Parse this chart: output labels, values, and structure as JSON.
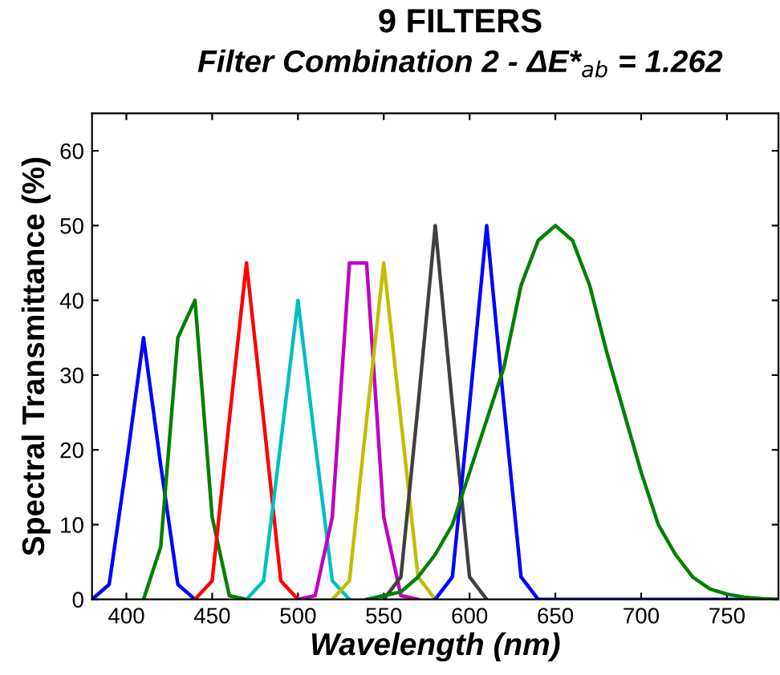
{
  "chart_data": {
    "type": "line",
    "title": "9 FILTERS",
    "subtitle": "Filter Combination 2 - ΔE*$_{ab}$ = 1.262",
    "xlabel": "Wavelength (nm)",
    "ylabel": "Spectral Transmittance (%)",
    "series": [
      {
        "color": "#0000ff",
        "x": [
          380,
          390,
          400,
          410,
          420,
          430,
          440
        ],
        "values": [
          0,
          2,
          18,
          35,
          18,
          2,
          0
        ]
      },
      {
        "color": "#008000",
        "x": [
          410,
          420,
          430,
          440,
          450,
          460,
          470
        ],
        "values": [
          0,
          7,
          35,
          40,
          11,
          0.5,
          0
        ]
      },
      {
        "color": "#ff0000",
        "x": [
          440,
          450,
          460,
          470,
          480,
          490,
          500
        ],
        "values": [
          0,
          2.5,
          24,
          45,
          24,
          2.5,
          0
        ]
      },
      {
        "color": "#00bfbf",
        "x": [
          470,
          480,
          490,
          500,
          510,
          520,
          530
        ],
        "values": [
          0,
          2.5,
          21,
          40,
          21,
          2.5,
          0
        ]
      },
      {
        "color": "#bf00bf",
        "x": [
          500,
          510,
          520,
          530,
          540,
          550,
          560,
          570
        ],
        "values": [
          0,
          0.5,
          11,
          45,
          45,
          11,
          0.5,
          0
        ]
      },
      {
        "color": "#bfbf00",
        "x": [
          520,
          530,
          540,
          550,
          560,
          570,
          580
        ],
        "values": [
          0,
          2.5,
          24,
          45,
          24,
          3,
          0
        ]
      },
      {
        "color": "#404040",
        "x": [
          550,
          560,
          570,
          580,
          590,
          600,
          610
        ],
        "values": [
          0,
          3,
          26,
          50,
          26,
          3,
          0
        ]
      },
      {
        "color": "#0000ff",
        "x": [
          580,
          590,
          600,
          610,
          620,
          630,
          640,
          780
        ],
        "values": [
          0,
          3,
          26,
          50,
          26,
          3,
          0,
          0
        ]
      },
      {
        "color": "#008000",
        "x": [
          540,
          550,
          560,
          570,
          580,
          590,
          600,
          610,
          620,
          630,
          640,
          650,
          660,
          670,
          680,
          690,
          700,
          710,
          720,
          730,
          740,
          750,
          760,
          770,
          780
        ],
        "values": [
          0,
          0.5,
          1,
          3,
          6,
          10,
          17,
          24,
          31,
          42,
          48,
          50,
          48,
          42,
          33,
          25,
          17,
          10,
          6,
          3,
          1.4,
          0.7,
          0.3,
          0.1,
          0
        ]
      }
    ],
    "xlim": [
      380,
      780
    ],
    "xticks": [
      400,
      450,
      500,
      550,
      600,
      650,
      700,
      750
    ],
    "ylim": [
      0,
      65
    ],
    "yticks": [
      0,
      10,
      20,
      30,
      40,
      50,
      60
    ],
    "grid": false,
    "legend": false,
    "marker": "none",
    "line_style": "solid"
  }
}
